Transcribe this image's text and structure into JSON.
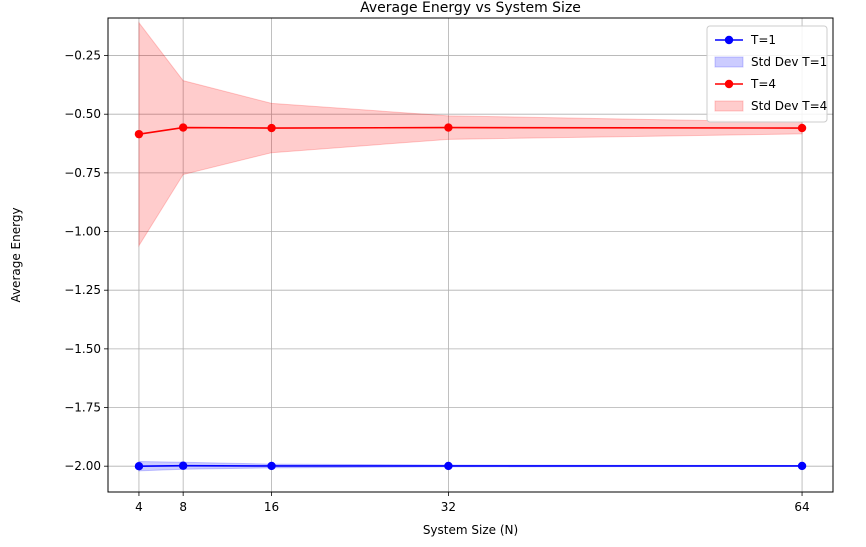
{
  "chart_data": {
    "type": "line",
    "title": "Average Energy vs System Size",
    "xlabel": "System Size (N)",
    "ylabel": "Average Energy",
    "x": [
      4,
      8,
      16,
      32,
      64
    ],
    "x_ticks": [
      4,
      8,
      16,
      32,
      64
    ],
    "x_tick_labels": [
      "4",
      "8",
      "16",
      "32",
      "64"
    ],
    "xlim": [
      1.2,
      66.8
    ],
    "ylim": [
      -2.11,
      -0.09
    ],
    "y_ticks": [
      -2.0,
      -1.75,
      -1.5,
      -1.25,
      -1.0,
      -0.75,
      -0.5,
      -0.25
    ],
    "y_tick_labels": [
      "−2.00",
      "−1.75",
      "−1.50",
      "−1.25",
      "−1.00",
      "−0.75",
      "−0.50",
      "−0.25"
    ],
    "grid": true,
    "legend_position": "top-right",
    "series": [
      {
        "name": "T=1",
        "band_name": "Std Dev T=1",
        "color": "#0000ff",
        "band_color": "#0000ff",
        "values": [
          -2.0,
          -1.998,
          -1.999,
          -1.999,
          -1.999
        ],
        "std": [
          0.02,
          0.015,
          0.008,
          0.004,
          0.002
        ]
      },
      {
        "name": "T=4",
        "band_name": "Std Dev T=4",
        "color": "#ff0000",
        "band_color": "#ff0000",
        "values": [
          -0.585,
          -0.557,
          -0.559,
          -0.557,
          -0.559
        ],
        "std": [
          0.475,
          0.2,
          0.105,
          0.05,
          0.025
        ]
      }
    ]
  }
}
